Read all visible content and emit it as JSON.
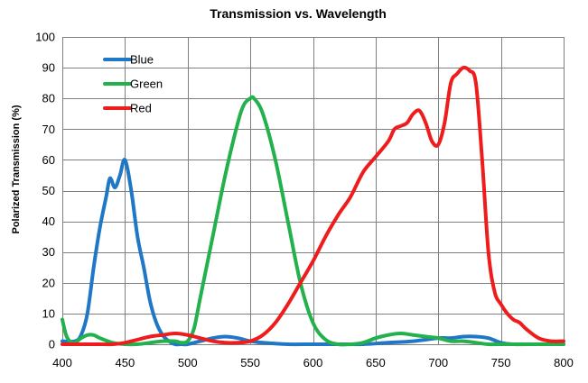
{
  "chart_data": {
    "type": "line",
    "title": "Transmission vs. Wavelength",
    "xlabel": "",
    "ylabel": "Polarized Transmission (%)",
    "xlim": [
      400,
      800
    ],
    "ylim": [
      0,
      100
    ],
    "xticks": [
      400,
      450,
      500,
      550,
      600,
      650,
      700,
      750,
      800
    ],
    "yticks": [
      0,
      10,
      20,
      30,
      40,
      50,
      60,
      70,
      80,
      90,
      100
    ],
    "grid": true,
    "legend": "top-left",
    "series": [
      {
        "name": "Blue",
        "color": "#1f77c6",
        "x": [
          400,
          410,
          415,
          420,
          425,
          430,
          435,
          438,
          442,
          446,
          450,
          455,
          460,
          465,
          470,
          475,
          480,
          485,
          490,
          495,
          500,
          510,
          520,
          530,
          540,
          550,
          560,
          580,
          600,
          620,
          640,
          660,
          680,
          700,
          710,
          720,
          730,
          740,
          750,
          760,
          780,
          800
        ],
        "y": [
          1,
          1,
          3,
          10,
          25,
          38,
          48,
          54,
          51,
          55,
          60,
          50,
          35,
          25,
          14,
          7,
          3,
          1,
          0,
          0,
          0,
          1,
          2,
          2.5,
          2,
          1,
          0.5,
          0,
          0,
          0,
          0,
          0.5,
          1,
          2,
          2,
          2.5,
          2.5,
          2,
          0.5,
          0,
          0,
          0
        ]
      },
      {
        "name": "Green",
        "color": "#22b14c",
        "x": [
          400,
          403,
          406,
          410,
          415,
          420,
          425,
          430,
          440,
          450,
          460,
          470,
          480,
          490,
          495,
          500,
          505,
          510,
          520,
          530,
          540,
          545,
          550,
          553,
          560,
          570,
          580,
          590,
          600,
          610,
          620,
          630,
          640,
          650,
          660,
          670,
          680,
          690,
          700,
          710,
          720,
          730,
          740,
          750,
          800
        ],
        "y": [
          8,
          3,
          1,
          0.5,
          2,
          3,
          3,
          2,
          0.5,
          0,
          0,
          0.5,
          1,
          1,
          0.5,
          1,
          5,
          15,
          35,
          55,
          72,
          78,
          80,
          80,
          75,
          60,
          40,
          20,
          7,
          1.5,
          0,
          0,
          0.5,
          2,
          3,
          3.5,
          3,
          2.5,
          2,
          1,
          1,
          0.5,
          0,
          0,
          0
        ]
      },
      {
        "name": "Red",
        "color": "#ee1c1c",
        "x": [
          400,
          410,
          420,
          430,
          440,
          450,
          460,
          470,
          480,
          490,
          500,
          510,
          520,
          530,
          540,
          550,
          560,
          570,
          580,
          590,
          600,
          610,
          620,
          630,
          640,
          650,
          660,
          665,
          670,
          675,
          680,
          685,
          690,
          695,
          700,
          705,
          710,
          715,
          720,
          725,
          730,
          735,
          740,
          745,
          750,
          755,
          760,
          765,
          770,
          780,
          790,
          800
        ],
        "y": [
          0,
          0,
          0,
          0,
          0,
          0.5,
          1.5,
          2.5,
          3,
          3.5,
          3,
          2,
          1,
          0.5,
          0.5,
          1,
          3,
          7,
          13,
          20,
          27,
          35,
          42,
          48,
          56,
          61,
          66,
          70,
          71,
          72,
          75,
          76,
          72,
          66,
          65,
          72,
          85,
          88,
          90,
          89,
          85,
          60,
          30,
          17,
          13,
          10,
          8,
          7,
          5,
          2,
          1,
          1
        ]
      }
    ]
  }
}
